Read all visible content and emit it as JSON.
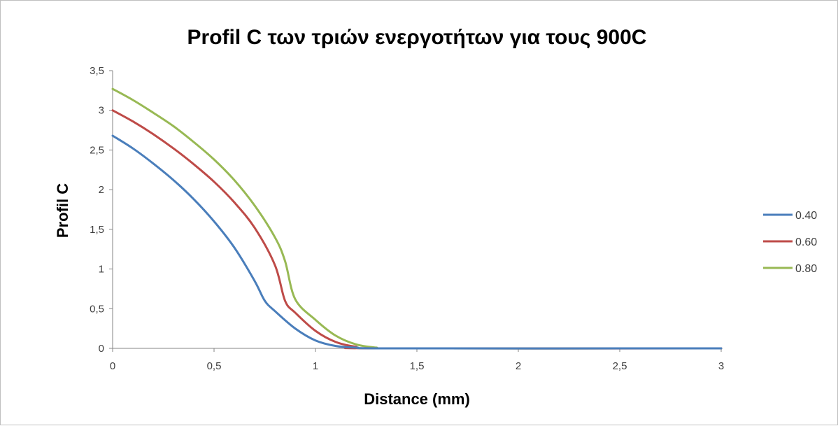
{
  "chart_data": {
    "type": "line",
    "title": "Profil C των τριών ενεργοτήτων για τους 900C",
    "xlabel": "Distance (mm)",
    "ylabel": "Profil C",
    "xlim": [
      0,
      3
    ],
    "ylim": [
      0,
      3.5
    ],
    "x_ticks": [
      "0",
      "0,5",
      "1",
      "1,5",
      "2",
      "2,5",
      "3"
    ],
    "y_ticks": [
      "0",
      "0,5",
      "1",
      "1,5",
      "2",
      "2,5",
      "3",
      "3,5"
    ],
    "grid": false,
    "legend_position": "right",
    "series": [
      {
        "name": "0.40",
        "color": "#4a7ebb",
        "points": [
          [
            0,
            2.68
          ],
          [
            0.1,
            2.52
          ],
          [
            0.2,
            2.33
          ],
          [
            0.3,
            2.12
          ],
          [
            0.4,
            1.88
          ],
          [
            0.5,
            1.6
          ],
          [
            0.6,
            1.27
          ],
          [
            0.7,
            0.85
          ],
          [
            0.75,
            0.6
          ],
          [
            0.8,
            0.47
          ],
          [
            0.9,
            0.25
          ],
          [
            1.0,
            0.1
          ],
          [
            1.1,
            0.03
          ],
          [
            1.2,
            0.01
          ],
          [
            1.4,
            0.0
          ],
          [
            3.0,
            0.0
          ]
        ]
      },
      {
        "name": "0.60",
        "color": "#be4b48",
        "points": [
          [
            0,
            3.0
          ],
          [
            0.1,
            2.86
          ],
          [
            0.2,
            2.7
          ],
          [
            0.3,
            2.52
          ],
          [
            0.4,
            2.32
          ],
          [
            0.5,
            2.1
          ],
          [
            0.6,
            1.84
          ],
          [
            0.7,
            1.52
          ],
          [
            0.8,
            1.05
          ],
          [
            0.85,
            0.6
          ],
          [
            0.9,
            0.45
          ],
          [
            1.0,
            0.22
          ],
          [
            1.1,
            0.08
          ],
          [
            1.2,
            0.02
          ],
          [
            1.3,
            0.0
          ],
          [
            3.0,
            0.0
          ]
        ]
      },
      {
        "name": "0.80",
        "color": "#98b954",
        "points": [
          [
            0,
            3.27
          ],
          [
            0.1,
            3.13
          ],
          [
            0.2,
            2.97
          ],
          [
            0.3,
            2.8
          ],
          [
            0.4,
            2.6
          ],
          [
            0.5,
            2.38
          ],
          [
            0.6,
            2.12
          ],
          [
            0.7,
            1.8
          ],
          [
            0.8,
            1.4
          ],
          [
            0.85,
            1.1
          ],
          [
            0.9,
            0.62
          ],
          [
            1.0,
            0.36
          ],
          [
            1.1,
            0.16
          ],
          [
            1.2,
            0.05
          ],
          [
            1.3,
            0.01
          ],
          [
            1.4,
            0.0
          ],
          [
            3.0,
            0.0
          ]
        ]
      }
    ]
  }
}
